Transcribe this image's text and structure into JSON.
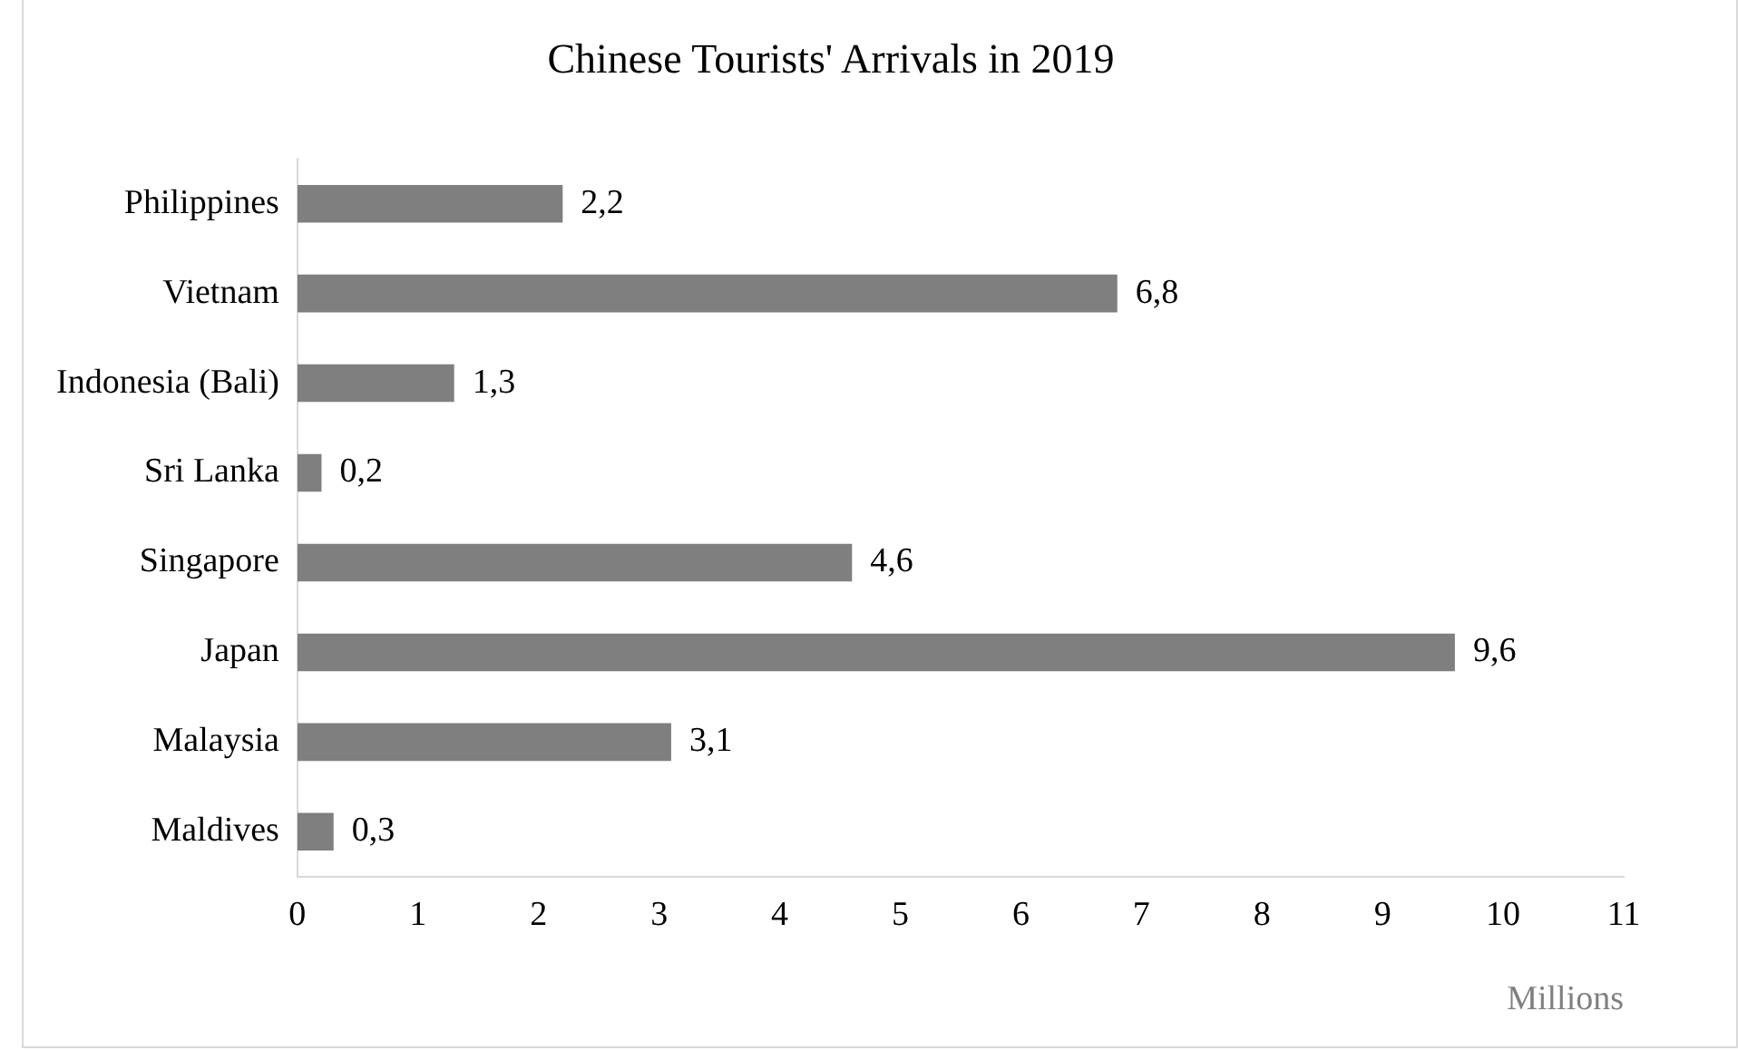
{
  "chart_data": {
    "type": "bar",
    "orientation": "horizontal",
    "title": "Chinese Tourists' Arrivals in 2019",
    "xlabel": "Millions",
    "categories": [
      "Philippines",
      "Vietnam",
      "Indonesia (Bali)",
      "Sri Lanka",
      "Singapore",
      "Japan",
      "Malaysia",
      "Maldives"
    ],
    "values": [
      2.2,
      6.8,
      1.3,
      0.2,
      4.6,
      9.6,
      3.1,
      0.3
    ],
    "value_labels": [
      "2,2",
      "6,8",
      "1,3",
      "0,2",
      "4,6",
      "9,6",
      "3,1",
      "0,3"
    ],
    "color": "#7f7f7f",
    "xlim": [
      0,
      11
    ],
    "xticks": [
      0,
      1,
      2,
      3,
      4,
      5,
      6,
      7,
      8,
      9,
      10,
      11
    ],
    "grid": false,
    "legend": false
  }
}
